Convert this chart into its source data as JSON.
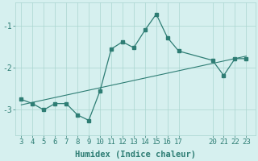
{
  "x": [
    3,
    4,
    5,
    6,
    7,
    8,
    9,
    10,
    11,
    12,
    13,
    14,
    15,
    16,
    17,
    20,
    21,
    22,
    23
  ],
  "y": [
    -2.75,
    -2.85,
    -3.0,
    -2.85,
    -2.85,
    -3.12,
    -3.25,
    -2.55,
    -1.55,
    -1.38,
    -1.52,
    -1.1,
    -0.72,
    -1.28,
    -1.6,
    -1.82,
    -2.18,
    -1.78,
    -1.78
  ],
  "trend_x": [
    3,
    23
  ],
  "trend_y": [
    -2.88,
    -1.72
  ],
  "xticks": [
    3,
    4,
    5,
    6,
    7,
    8,
    9,
    10,
    11,
    12,
    13,
    14,
    15,
    16,
    17,
    20,
    21,
    22,
    23
  ],
  "ytick_vals": [
    -3,
    -2,
    -1
  ],
  "ytick_labels": [
    "-3",
    "-2",
    "-1"
  ],
  "ylim": [
    -3.6,
    -0.45
  ],
  "xlim": [
    2.5,
    23.8
  ],
  "xlabel": "Humidex (Indice chaleur)",
  "line_color": "#2e7d74",
  "bg_color": "#d6f0ef",
  "grid_color": "#aad5d0",
  "tick_fontsize": 6.5,
  "label_fontsize": 7.5
}
